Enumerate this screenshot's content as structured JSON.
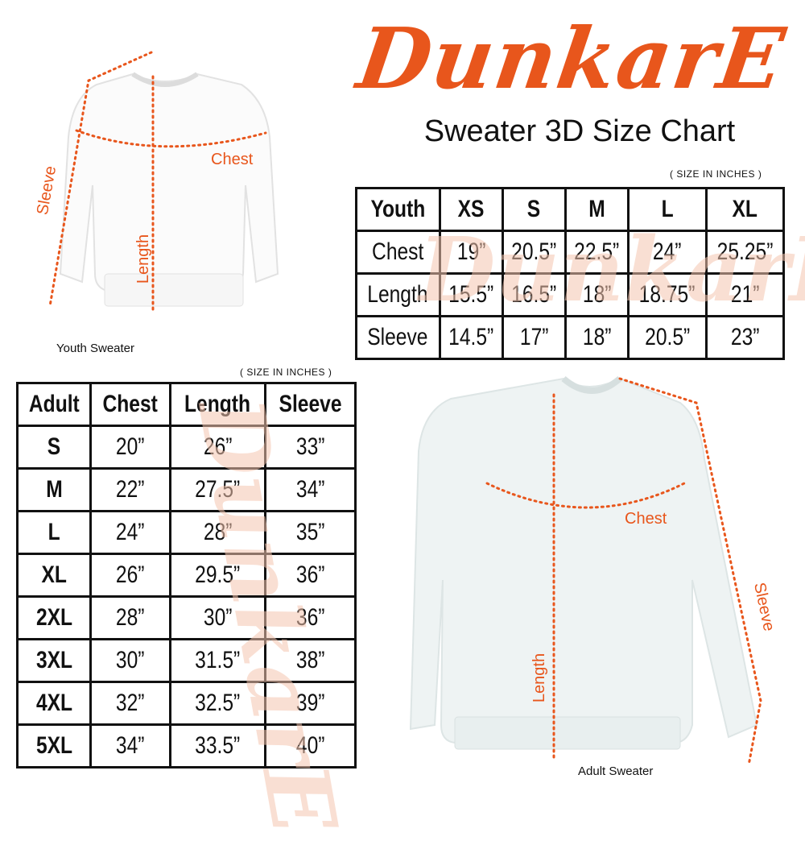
{
  "brand": {
    "logo_text": "DunkarE",
    "color": "#e8561c"
  },
  "title": "Sweater 3D Size Chart",
  "youth": {
    "caption": "Youth Sweater",
    "unit_note": "( SIZE IN INCHES )",
    "labels": {
      "chest": "Chest",
      "length": "Length",
      "sleeve": "Sleeve"
    },
    "table": {
      "header": [
        "Youth",
        "XS",
        "S",
        "M",
        "L",
        "XL"
      ],
      "rows": [
        [
          "Chest",
          "19”",
          "20.5”",
          "22.5”",
          "24”",
          "25.25”"
        ],
        [
          "Length",
          "15.5”",
          "16.5”",
          "18”",
          "18.75”",
          "21”"
        ],
        [
          "Sleeve",
          "14.5”",
          "17”",
          "18”",
          "20.5”",
          "23”"
        ]
      ]
    }
  },
  "adult": {
    "caption": "Adult Sweater",
    "unit_note": "( SIZE IN INCHES )",
    "labels": {
      "chest": "Chest",
      "length": "Length",
      "sleeve": "Sleeve"
    },
    "table": {
      "header": [
        "Adult",
        "Chest",
        "Length",
        "Sleeve"
      ],
      "rows": [
        [
          "S",
          "20”",
          "26”",
          "33”"
        ],
        [
          "M",
          "22”",
          "27.5”",
          "34”"
        ],
        [
          "L",
          "24”",
          "28”",
          "35”"
        ],
        [
          "XL",
          "26”",
          "29.5”",
          "36”"
        ],
        [
          "2XL",
          "28”",
          "30”",
          "36”"
        ],
        [
          "3XL",
          "30”",
          "31.5”",
          "38”"
        ],
        [
          "4XL",
          "32”",
          "32.5”",
          "39”"
        ],
        [
          "5XL",
          "34”",
          "33.5”",
          "40”"
        ]
      ]
    }
  }
}
